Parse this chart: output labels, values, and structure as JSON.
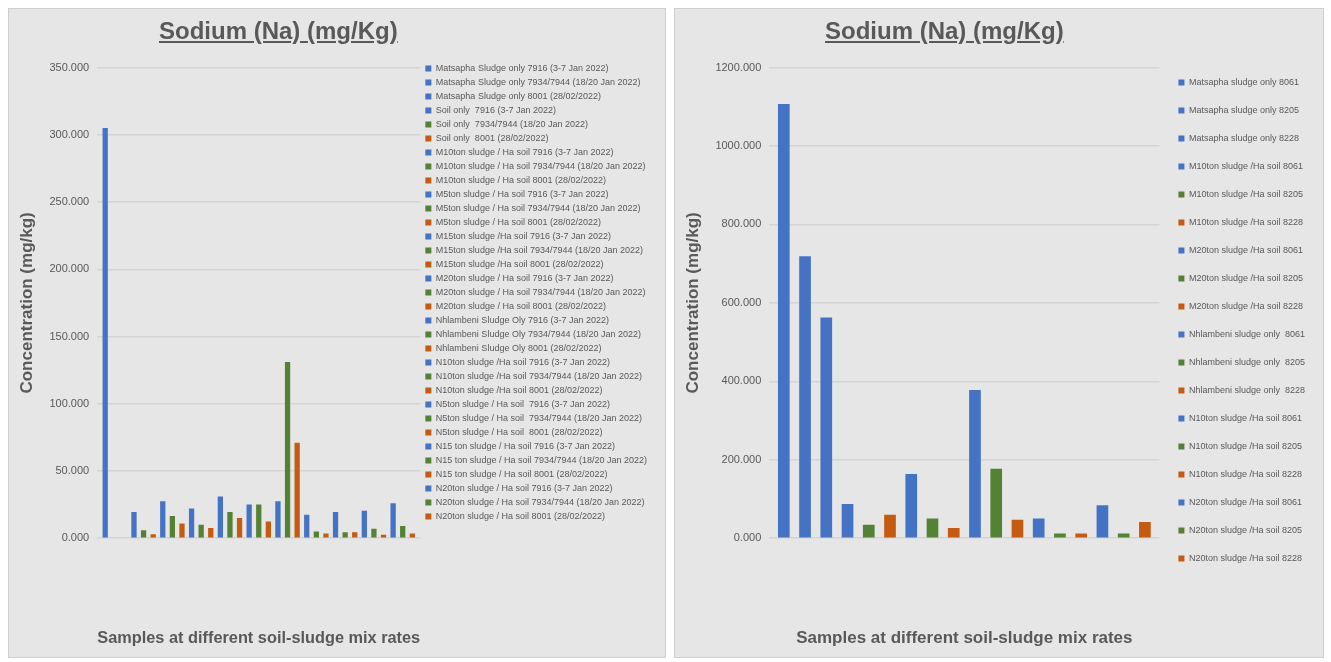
{
  "chart_data": [
    {
      "type": "bar",
      "title": "Sodium (Na) (mg/Kg)",
      "xlabel": "Samples at different soil-sludge mix rates",
      "ylabel": "Concentration (mg/kg)",
      "categories": [
        null
      ],
      "ylim": [
        0,
        350
      ],
      "yticks": [
        {
          "value": 0,
          "label": "0.000"
        },
        {
          "value": 50,
          "label": "50.000"
        },
        {
          "value": 100,
          "label": "100.000"
        },
        {
          "value": 150,
          "label": "150.000"
        },
        {
          "value": 200,
          "label": "200.000"
        },
        {
          "value": 250,
          "label": "250.000"
        },
        {
          "value": 300,
          "label": "300.000"
        },
        {
          "value": 350,
          "label": "350.000"
        }
      ],
      "grid": "y",
      "legend": "right",
      "series": [
        {
          "name": "Matsapha Sludge only 7916 (3-7 Jan 2022)",
          "color": "#4472c4",
          "values": [
            305
          ]
        },
        {
          "name": "Matsapha Sludge only 7934/7944 (18/20 Jan 2022)",
          "color": "#4472c4",
          "values": [
            null
          ]
        },
        {
          "name": "Matsapha Sludge only 8001 (28/02/2022)",
          "color": "#4472c4",
          "values": [
            null
          ]
        },
        {
          "name": "Soil only  7916 (3-7 Jan 2022)",
          "color": "#4472c4",
          "values": [
            19.5
          ]
        },
        {
          "name": "Soil only  7934/7944 (18/20 Jan 2022)",
          "color": "#548235",
          "values": [
            6
          ]
        },
        {
          "name": "Soil only  8001 (28/02/2022)",
          "color": "#c55a11",
          "values": [
            3
          ]
        },
        {
          "name": "M10ton sludge / Ha soil 7916 (3-7 Jan 2022)",
          "color": "#4472c4",
          "values": [
            27.5
          ]
        },
        {
          "name": "M10ton sludge / Ha soil 7934/7944 (18/20 Jan 2022)",
          "color": "#548235",
          "values": [
            16.5
          ]
        },
        {
          "name": "M10ton sludge / Ha soil 8001 (28/02/2022)",
          "color": "#c55a11",
          "values": [
            11
          ]
        },
        {
          "name": "M5ton sludge / Ha soil 7916 (3-7 Jan 2022)",
          "color": "#4472c4",
          "values": [
            22
          ]
        },
        {
          "name": "M5ton sludge / Ha soil 7934/7944 (18/20 Jan 2022)",
          "color": "#548235",
          "values": [
            10
          ]
        },
        {
          "name": "M5ton sludge / Ha soil 8001 (28/02/2022)",
          "color": "#c55a11",
          "values": [
            7.5
          ]
        },
        {
          "name": "M15ton sludge /Ha soil 7916 (3-7 Jan 2022)",
          "color": "#4472c4",
          "values": [
            31
          ]
        },
        {
          "name": "M15ton sludge /Ha soil 7934/7944 (18/20 Jan 2022)",
          "color": "#548235",
          "values": [
            19.5
          ]
        },
        {
          "name": "M15ton sludge /Ha soil 8001 (28/02/2022)",
          "color": "#c55a11",
          "values": [
            15
          ]
        },
        {
          "name": "M20ton sludge / Ha soil 7916 (3-7 Jan 2022)",
          "color": "#4472c4",
          "values": [
            25
          ]
        },
        {
          "name": "M20ton sludge / Ha soil 7934/7944 (18/20 Jan 2022)",
          "color": "#548235",
          "values": [
            25
          ]
        },
        {
          "name": "M20ton sludge / Ha soil 8001 (28/02/2022)",
          "color": "#c55a11",
          "values": [
            12.5
          ]
        },
        {
          "name": "Nhlambeni Sludge Oly 7916 (3-7 Jan 2022)",
          "color": "#4472c4",
          "values": [
            27.5
          ]
        },
        {
          "name": "Nhlambeni Sludge Oly 7934/7944 (18/20 Jan 2022)",
          "color": "#548235",
          "values": [
            131
          ]
        },
        {
          "name": "Nhlambeni Sludge Oly 8001 (28/02/2022)",
          "color": "#c55a11",
          "values": [
            71
          ]
        },
        {
          "name": "N10ton sludge /Ha soil 7916 (3-7 Jan 2022)",
          "color": "#4472c4",
          "values": [
            17.5
          ]
        },
        {
          "name": "N10ton sludge /Ha soil 7934/7944 (18/20 Jan 2022)",
          "color": "#548235",
          "values": [
            5
          ]
        },
        {
          "name": "N10ton sludge /Ha soil 8001 (28/02/2022)",
          "color": "#c55a11",
          "values": [
            3.5
          ]
        },
        {
          "name": "N5ton sludge / Ha soil  7916 (3-7 Jan 2022)",
          "color": "#4472c4",
          "values": [
            19.5
          ]
        },
        {
          "name": "N5ton sludge / Ha soil  7934/7944 (18/20 Jan 2022)",
          "color": "#548235",
          "values": [
            4.5
          ]
        },
        {
          "name": "N5ton sludge / Ha soil  8001 (28/02/2022)",
          "color": "#c55a11",
          "values": [
            4.5
          ]
        },
        {
          "name": "N15 ton sludge / Ha soil 7916 (3-7 Jan 2022)",
          "color": "#4472c4",
          "values": [
            20.5
          ]
        },
        {
          "name": "N15 ton sludge / Ha soil 7934/7944 (18/20 Jan 2022)",
          "color": "#548235",
          "values": [
            7
          ]
        },
        {
          "name": "N15 ton sludge / Ha soil 8001 (28/02/2022)",
          "color": "#c55a11",
          "values": [
            2.5
          ]
        },
        {
          "name": "N20ton sludge / Ha soil 7916 (3-7 Jan 2022)",
          "color": "#4472c4",
          "values": [
            26
          ]
        },
        {
          "name": "N20ton sludge / Ha soil 7934/7944 (18/20 Jan 2022)",
          "color": "#548235",
          "values": [
            9
          ]
        },
        {
          "name": "N20ton sludge / Ha soil 8001 (28/02/2022)",
          "color": "#c55a11",
          "values": [
            3.5
          ]
        }
      ]
    },
    {
      "type": "bar",
      "title": "Sodium (Na) (mg/Kg)",
      "xlabel": "Samples at different soil-sludge mix rates",
      "ylabel": "Concentration (mg/kg)",
      "categories": [
        null
      ],
      "ylim": [
        0,
        1200
      ],
      "yticks": [
        {
          "value": 0,
          "label": "0.000"
        },
        {
          "value": 200,
          "label": "200.000"
        },
        {
          "value": 400,
          "label": "400.000"
        },
        {
          "value": 600,
          "label": "600.000"
        },
        {
          "value": 800,
          "label": "800.000"
        },
        {
          "value": 1000,
          "label": "1000.000"
        },
        {
          "value": 1200,
          "label": "1200.000"
        }
      ],
      "grid": "y",
      "legend": "right",
      "series": [
        {
          "name": "Matsapha sludge only 8061",
          "color": "#4472c4",
          "values": [
            1107
          ]
        },
        {
          "name": "Matsapha sludge only 8205",
          "color": "#4472c4",
          "values": [
            719
          ]
        },
        {
          "name": "Matsapha sludge only 8228",
          "color": "#4472c4",
          "values": [
            563
          ]
        },
        {
          "name": "M10ton sludge /Ha soil 8061",
          "color": "#4472c4",
          "values": [
            87
          ]
        },
        {
          "name": "M10ton sludge /Ha soil 8205",
          "color": "#548235",
          "values": [
            34
          ]
        },
        {
          "name": "M10ton sludge /Ha soil 8228",
          "color": "#c55a11",
          "values": [
            60
          ]
        },
        {
          "name": "M20ton sludge /Ha soil 8061",
          "color": "#4472c4",
          "values": [
            164
          ]
        },
        {
          "name": "M20ton sludge /Ha soil 8205",
          "color": "#548235",
          "values": [
            50
          ]
        },
        {
          "name": "M20ton sludge /Ha soil 8228",
          "color": "#c55a11",
          "values": [
            26
          ]
        },
        {
          "name": "Nhlambeni sludge only  8061",
          "color": "#4472c4",
          "values": [
            378
          ]
        },
        {
          "name": "Nhlambeni sludge only  8205",
          "color": "#548235",
          "values": [
            177
          ]
        },
        {
          "name": "Nhlambeni sludge only  8228",
          "color": "#c55a11",
          "values": [
            47
          ]
        },
        {
          "name": "N10ton sludge /Ha soil 8061",
          "color": "#4472c4",
          "values": [
            50
          ]
        },
        {
          "name": "N10ton sludge /Ha soil 8205",
          "color": "#548235",
          "values": [
            12
          ]
        },
        {
          "name": "N10ton sludge /Ha soil 8228",
          "color": "#c55a11",
          "values": [
            12
          ]
        },
        {
          "name": "N20ton sludge /Ha soil 8061",
          "color": "#4472c4",
          "values": [
            84
          ]
        },
        {
          "name": "N20ton sludge /Ha soil 8205",
          "color": "#548235",
          "values": [
            12
          ]
        },
        {
          "name": "N20ton sludge /Ha soil 8228",
          "color": "#c55a11",
          "values": [
            41
          ]
        }
      ]
    }
  ]
}
